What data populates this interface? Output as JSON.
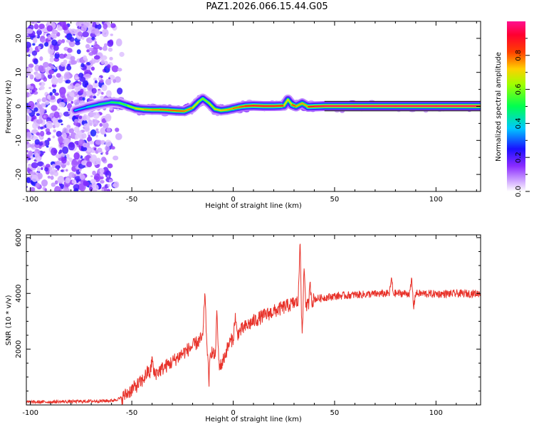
{
  "title": "PAZ1.2026.066.15.44.G05",
  "colors": {
    "snr_line": "#e8322a",
    "ridge_core": "#ff0000",
    "frame": "#000000"
  },
  "chart_data": [
    {
      "type": "heatmap",
      "name": "spectrogram",
      "xlabel": "Height of straight line (km)",
      "ylabel": "Frequency (Hz)",
      "xlim": [
        -102,
        122
      ],
      "ylim": [
        -25,
        25
      ],
      "xticks": [
        -100,
        -50,
        0,
        50,
        100
      ],
      "xtick_labels": [
        "-100",
        "-50",
        "0",
        "50",
        "100"
      ],
      "yticks": [
        -20,
        -10,
        0,
        10,
        20
      ],
      "ytick_labels": [
        "-20",
        "-10",
        "0",
        "10",
        "20"
      ],
      "ridge": {
        "x": [
          -78,
          -72,
          -66,
          -60,
          -56,
          -52,
          -48,
          -44,
          -40,
          -36,
          -32,
          -28,
          -24,
          -20,
          -17,
          -15,
          -12,
          -9,
          -6,
          -3,
          0,
          3,
          6,
          10,
          15,
          20,
          25,
          27,
          29,
          31,
          34,
          37,
          40,
          45,
          60,
          80,
          100,
          122
        ],
        "y": [
          -1.2,
          -0.2,
          0.6,
          1.2,
          1.0,
          0.2,
          -0.6,
          -0.9,
          -1.0,
          -1.0,
          -1.1,
          -1.3,
          -1.4,
          -0.4,
          1.4,
          2.3,
          1.0,
          -0.8,
          -1.2,
          -1.0,
          -0.6,
          -0.2,
          0.1,
          0.2,
          0.1,
          0.1,
          0.2,
          2.0,
          0.5,
          0.0,
          0.9,
          -0.1,
          0.0,
          0.1,
          0.1,
          0.1,
          0.1,
          0.1
        ],
        "amplitude": [
          0.3,
          0.35,
          0.4,
          0.45,
          0.5,
          0.55,
          0.65,
          0.7,
          0.75,
          0.75,
          0.8,
          0.8,
          0.8,
          0.7,
          0.6,
          0.55,
          0.6,
          0.65,
          0.7,
          0.7,
          0.75,
          0.8,
          0.85,
          0.9,
          0.9,
          0.9,
          0.85,
          0.5,
          0.8,
          0.85,
          0.6,
          0.85,
          0.9,
          0.95,
          0.98,
          0.98,
          0.98,
          0.98
        ]
      },
      "noise_region_x": [
        -102,
        -54
      ],
      "colorbar": {
        "label": "Normalized spectral amplitude",
        "range": [
          0,
          1
        ],
        "ticks": [
          0.0,
          0.2,
          0.4,
          0.6,
          0.8
        ],
        "tick_labels": [
          "0.0",
          "0.2",
          "0.4",
          "0.6",
          "0.8"
        ]
      }
    },
    {
      "type": "line",
      "name": "snr",
      "xlabel": "Height of straight line (km)",
      "ylabel": "SNR (10 * v/v)",
      "xlim": [
        -102,
        122
      ],
      "ylim": [
        0,
        6100
      ],
      "xticks": [
        -100,
        -50,
        0,
        50,
        100
      ],
      "xtick_labels": [
        "-100",
        "-50",
        "0",
        "50",
        "100"
      ],
      "yticks": [
        2000,
        4000,
        6000
      ],
      "ytick_labels": [
        "2000",
        "4000",
        "6000"
      ],
      "trend": {
        "x": [
          -102,
          -80,
          -60,
          -55,
          -50,
          -45,
          -42,
          -40,
          -35,
          -30,
          -25,
          -20,
          -16,
          -14,
          -12,
          -10,
          -8,
          -6,
          -4,
          -2,
          0,
          5,
          10,
          15,
          20,
          25,
          30,
          32,
          34,
          36,
          40,
          50,
          60,
          70,
          80,
          90,
          100,
          110,
          122
        ],
        "y": [
          100,
          120,
          150,
          250,
          550,
          850,
          1200,
          1050,
          1300,
          1550,
          1850,
          2100,
          2350,
          2500,
          2050,
          1850,
          1600,
          1400,
          1800,
          2200,
          2400,
          2750,
          3000,
          3200,
          3350,
          3500,
          3650,
          3700,
          3600,
          3500,
          3800,
          3900,
          3950,
          3980,
          4000,
          4000,
          3980,
          3990,
          4000
        ]
      },
      "spikes": [
        {
          "x": -40,
          "y": 1700
        },
        {
          "x": -14,
          "y": 4100
        },
        {
          "x": -12,
          "y": 800
        },
        {
          "x": -8,
          "y": 3300
        },
        {
          "x": 1,
          "y": 3200
        },
        {
          "x": 33,
          "y": 6050
        },
        {
          "x": 34,
          "y": 2400
        },
        {
          "x": 35,
          "y": 5000
        },
        {
          "x": 38,
          "y": 4300
        },
        {
          "x": 78,
          "y": 4550
        },
        {
          "x": 88,
          "y": 4500
        },
        {
          "x": 89,
          "y": 3500
        }
      ]
    }
  ]
}
